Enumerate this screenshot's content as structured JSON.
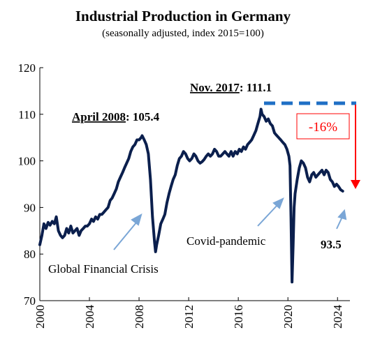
{
  "chart_data": {
    "type": "line",
    "title": "Industrial Production in Germany",
    "subtitle": "(seasonally adjusted, index 2015=100)",
    "xlabel": "",
    "ylabel": "",
    "xlim": [
      2000,
      2025
    ],
    "ylim": [
      70,
      120
    ],
    "y_ticks": [
      70,
      80,
      90,
      100,
      110,
      120
    ],
    "x_ticks": [
      2000,
      2004,
      2008,
      2012,
      2016,
      2020,
      2024
    ],
    "grid": false,
    "legend": "none",
    "colors": {
      "series": "#0b1f4d",
      "peak_line": "#1f6fc5",
      "decline": "#ff0000",
      "arrow": "#7aa6d6"
    },
    "series": [
      {
        "points": [
          [
            2000.0,
            82
          ],
          [
            2000.17,
            84
          ],
          [
            2000.33,
            86.5
          ],
          [
            2000.5,
            85.5
          ],
          [
            2000.67,
            86.8
          ],
          [
            2000.83,
            86.2
          ],
          [
            2001.0,
            87
          ],
          [
            2001.17,
            86.5
          ],
          [
            2001.33,
            88
          ],
          [
            2001.5,
            85
          ],
          [
            2001.67,
            84
          ],
          [
            2001.83,
            83.5
          ],
          [
            2002.0,
            84
          ],
          [
            2002.17,
            85.5
          ],
          [
            2002.33,
            84.5
          ],
          [
            2002.5,
            86
          ],
          [
            2002.67,
            84.5
          ],
          [
            2002.83,
            85
          ],
          [
            2003.0,
            85.5
          ],
          [
            2003.17,
            84
          ],
          [
            2003.33,
            85
          ],
          [
            2003.5,
            85.5
          ],
          [
            2003.67,
            86
          ],
          [
            2003.83,
            86
          ],
          [
            2004.0,
            86.5
          ],
          [
            2004.17,
            87.5
          ],
          [
            2004.33,
            87
          ],
          [
            2004.5,
            88
          ],
          [
            2004.67,
            87.5
          ],
          [
            2004.83,
            88.5
          ],
          [
            2005.0,
            88.5
          ],
          [
            2005.17,
            89
          ],
          [
            2005.33,
            89.5
          ],
          [
            2005.5,
            90
          ],
          [
            2005.67,
            91.5
          ],
          [
            2005.83,
            92
          ],
          [
            2006.0,
            93
          ],
          [
            2006.17,
            94
          ],
          [
            2006.33,
            95.5
          ],
          [
            2006.5,
            96.5
          ],
          [
            2006.67,
            97.5
          ],
          [
            2006.83,
            98.5
          ],
          [
            2007.0,
            99.5
          ],
          [
            2007.17,
            100.5
          ],
          [
            2007.33,
            102
          ],
          [
            2007.5,
            103
          ],
          [
            2007.67,
            103.5
          ],
          [
            2007.83,
            104.5
          ],
          [
            2008.0,
            104.5
          ],
          [
            2008.17,
            105
          ],
          [
            2008.25,
            105.4
          ],
          [
            2008.42,
            104.5
          ],
          [
            2008.58,
            103.5
          ],
          [
            2008.75,
            101.5
          ],
          [
            2008.92,
            96
          ],
          [
            2009.08,
            88
          ],
          [
            2009.25,
            82.5
          ],
          [
            2009.33,
            80.5
          ],
          [
            2009.42,
            82
          ],
          [
            2009.58,
            84
          ],
          [
            2009.75,
            86.5
          ],
          [
            2009.92,
            87.5
          ],
          [
            2010.08,
            88.5
          ],
          [
            2010.25,
            91
          ],
          [
            2010.42,
            93
          ],
          [
            2010.58,
            94.5
          ],
          [
            2010.75,
            96
          ],
          [
            2010.92,
            97
          ],
          [
            2011.08,
            99
          ],
          [
            2011.25,
            100.5
          ],
          [
            2011.42,
            101
          ],
          [
            2011.58,
            102
          ],
          [
            2011.75,
            101.5
          ],
          [
            2011.92,
            100.5
          ],
          [
            2012.08,
            100
          ],
          [
            2012.25,
            100.5
          ],
          [
            2012.42,
            101.5
          ],
          [
            2012.58,
            101
          ],
          [
            2012.75,
            100
          ],
          [
            2012.92,
            99.5
          ],
          [
            2013.08,
            99.8
          ],
          [
            2013.25,
            100.3
          ],
          [
            2013.42,
            101
          ],
          [
            2013.58,
            101.5
          ],
          [
            2013.75,
            101
          ],
          [
            2013.92,
            101.5
          ],
          [
            2014.08,
            102.5
          ],
          [
            2014.25,
            102
          ],
          [
            2014.42,
            101
          ],
          [
            2014.58,
            101
          ],
          [
            2014.75,
            101.5
          ],
          [
            2014.92,
            102
          ],
          [
            2015.08,
            101.5
          ],
          [
            2015.25,
            101
          ],
          [
            2015.42,
            102
          ],
          [
            2015.58,
            101
          ],
          [
            2015.75,
            102
          ],
          [
            2015.92,
            101.5
          ],
          [
            2016.08,
            102.5
          ],
          [
            2016.25,
            102
          ],
          [
            2016.42,
            103
          ],
          [
            2016.58,
            102.5
          ],
          [
            2016.75,
            103.5
          ],
          [
            2016.92,
            104
          ],
          [
            2017.08,
            104.5
          ],
          [
            2017.25,
            105.5
          ],
          [
            2017.42,
            106.5
          ],
          [
            2017.58,
            108
          ],
          [
            2017.75,
            109.5
          ],
          [
            2017.83,
            111.1
          ],
          [
            2017.92,
            110
          ],
          [
            2018.08,
            109.5
          ],
          [
            2018.25,
            108.5
          ],
          [
            2018.42,
            109
          ],
          [
            2018.58,
            108
          ],
          [
            2018.75,
            107.5
          ],
          [
            2018.92,
            106
          ],
          [
            2019.08,
            105.5
          ],
          [
            2019.25,
            105
          ],
          [
            2019.42,
            104.5
          ],
          [
            2019.58,
            104
          ],
          [
            2019.75,
            103.5
          ],
          [
            2019.92,
            102.5
          ],
          [
            2020.08,
            101
          ],
          [
            2020.17,
            99
          ],
          [
            2020.25,
            88
          ],
          [
            2020.33,
            74
          ],
          [
            2020.42,
            82
          ],
          [
            2020.5,
            90
          ],
          [
            2020.58,
            93
          ],
          [
            2020.75,
            96
          ],
          [
            2020.92,
            98.5
          ],
          [
            2021.08,
            100
          ],
          [
            2021.25,
            99.5
          ],
          [
            2021.42,
            98.5
          ],
          [
            2021.58,
            96.5
          ],
          [
            2021.75,
            95.5
          ],
          [
            2021.92,
            97
          ],
          [
            2022.08,
            97.5
          ],
          [
            2022.25,
            96.5
          ],
          [
            2022.42,
            97
          ],
          [
            2022.58,
            97.5
          ],
          [
            2022.75,
            98
          ],
          [
            2022.92,
            97
          ],
          [
            2023.08,
            98
          ],
          [
            2023.25,
            97.5
          ],
          [
            2023.42,
            96
          ],
          [
            2023.58,
            95.5
          ],
          [
            2023.75,
            94.5
          ],
          [
            2023.92,
            95
          ],
          [
            2024.08,
            94.5
          ],
          [
            2024.25,
            93.8
          ],
          [
            2024.42,
            93.5
          ]
        ]
      }
    ],
    "annotations": {
      "gfc_peak_label": "April 2008",
      "gfc_peak_value": ": 105.4",
      "peak_label": "Nov. 2017",
      "peak_value": ": 111.1",
      "decline_label": "-16%",
      "last_value_label": "93.5",
      "gfc_label": "Global Financial Crisis",
      "covid_label": "Covid-pandemic"
    }
  }
}
